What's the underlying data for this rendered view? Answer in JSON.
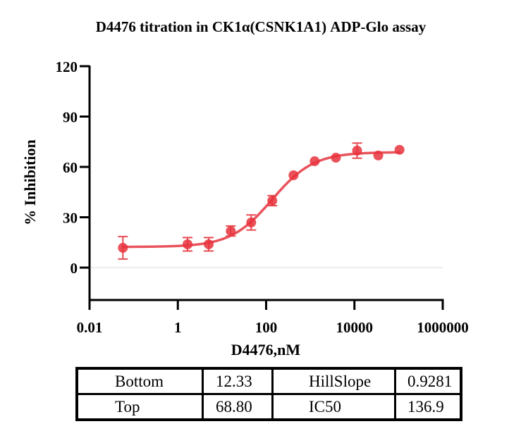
{
  "chart_data": {
    "type": "scatter",
    "title": "D4476 titration in CK1α(CSNK1A1) ADP-Glo assay",
    "xlabel": "D4476,nM",
    "ylabel": "% Inhibition",
    "xscale": "log",
    "xlim": [
      0.01,
      1000000
    ],
    "ylim": [
      -20,
      120
    ],
    "xticks": [
      0.01,
      1,
      100,
      10000,
      1000000
    ],
    "xtick_labels": [
      "0.01",
      "1",
      "100",
      "10000",
      "1000000"
    ],
    "yticks": [
      0,
      30,
      60,
      90,
      120
    ],
    "ytick_labels": [
      "0",
      "30",
      "60",
      "90",
      "120"
    ],
    "reference_line_y": 0,
    "grid": false,
    "colors": {
      "points": "#e8323c",
      "curve": "#e84a52",
      "errorbars": "#e84a52",
      "baseline": "#e6e6e6",
      "axis": "#000000"
    },
    "series": [
      {
        "name": "D4476",
        "x": [
          0.057,
          1.66,
          5.0,
          15.8,
          45.9,
          138,
          417,
          1259,
          3800,
          11500,
          34700,
          105000
        ],
        "y": [
          11.8,
          13.9,
          13.9,
          21.8,
          26.9,
          39.9,
          55.0,
          63.4,
          65.5,
          69.7,
          66.8,
          70.2
        ],
        "error": [
          6.7,
          4.0,
          4.0,
          3.0,
          4.5,
          3.0,
          0,
          0,
          0,
          4.5,
          0,
          0
        ]
      }
    ],
    "fit": {
      "model": "4PL",
      "bottom": 12.33,
      "top": 68.8,
      "ic50": 136.9,
      "hillslope": 0.9281
    }
  },
  "table": {
    "rows": [
      [
        {
          "label": "Bottom"
        },
        {
          "label": "12.33"
        },
        {
          "label": "HillSlope"
        },
        {
          "label": "0.9281"
        }
      ],
      [
        {
          "label": "Top"
        },
        {
          "label": "68.80"
        },
        {
          "label": "IC50"
        },
        {
          "label": "136.9"
        }
      ]
    ]
  }
}
